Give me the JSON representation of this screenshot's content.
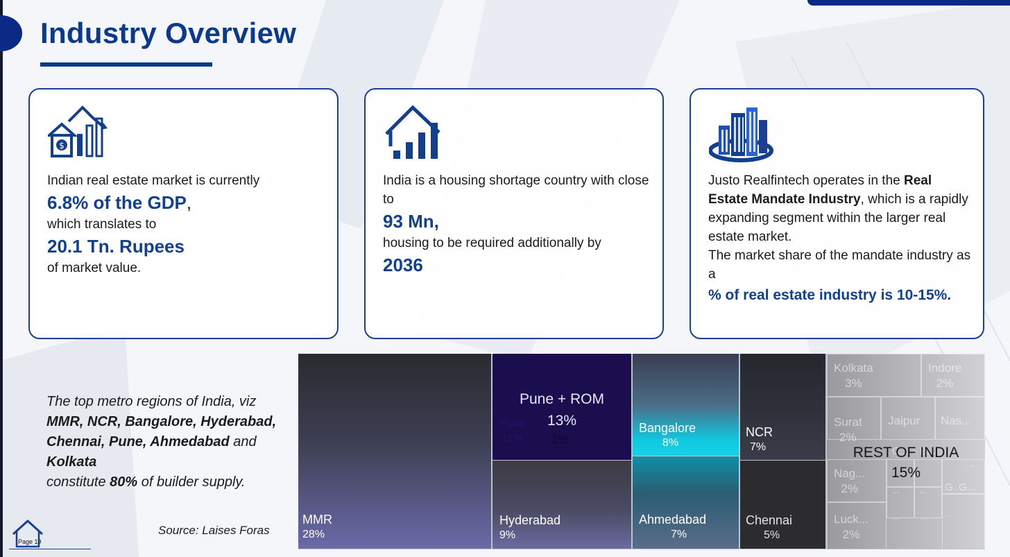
{
  "page": {
    "title": "Industry Overview",
    "page_label": "Page 19"
  },
  "cards": [
    {
      "icon": "house-growth-chart-icon",
      "line1": "Indian real estate market is currently",
      "highlight1": "6.8% of the GDP",
      "highlight1_suffix": ",",
      "line2": "which translates to",
      "highlight2": "20.1 Tn. Rupees",
      "line3": "of market value."
    },
    {
      "icon": "house-bar-chart-icon",
      "line1": "India is a housing shortage country with close to",
      "highlight1": "93 Mn,",
      "line2": "housing to be required additionally by",
      "highlight2": "2036"
    },
    {
      "icon": "city-buildings-icon",
      "line1_prefix": "Justo Realfintech operates in the ",
      "line1_bold": "Real Estate Mandate Industry",
      "line1_suffix": ", which is a rapidly expanding segment within the larger real estate market.",
      "line2": "The market share of the mandate industry as a",
      "highlight": "% of real estate industry is 10-15%."
    }
  ],
  "note": {
    "intro": "The top metro regions of India, viz",
    "regions_a": "MMR, NCR, Bangalore, Hyderabad, Chennai, Pune, Ahmedabad",
    "and": " and ",
    "regions_b": "Kolkata",
    "outro_pre": "constitute ",
    "outro_pct": "80%",
    "outro_post": " of builder supply."
  },
  "source": "Source: Laises Foras",
  "treemap": {
    "mmr": {
      "name": "MMR",
      "pct": "28%"
    },
    "pune_rom": {
      "name": "Pune + ROM",
      "pct": "13%",
      "sub1_name": "Pune",
      "sub1_pct": "11%",
      "sub2_pct": "3%"
    },
    "hyderabad": {
      "name": "Hyderabad",
      "pct": "9%"
    },
    "bangalore": {
      "name": "Bangalore",
      "pct": "8%"
    },
    "ahmedabad": {
      "name": "Ahmedabad",
      "pct": "7%"
    },
    "ncr": {
      "name": "NCR",
      "pct": "7%"
    },
    "chennai": {
      "name": "Chennai",
      "pct": "5%"
    },
    "rest": {
      "name": "REST OF INDIA",
      "pct": "15%",
      "kolkata": {
        "name": "Kolkata",
        "pct": "3%"
      },
      "indore": {
        "name": "Indore",
        "pct": "2%"
      },
      "surat": {
        "name": "Surat",
        "pct": "2%"
      },
      "jaipur": {
        "name": "Jaipur"
      },
      "nas": {
        "name": "Nas..."
      },
      "nag": {
        "name": "Nag...",
        "pct": "2%"
      },
      "luck": {
        "name": "Luck...",
        "pct": "2%"
      },
      "c_small": "C...",
      "b_small": "B...",
      "g_small": "G..G...",
      "ellipsis": "..."
    }
  }
}
